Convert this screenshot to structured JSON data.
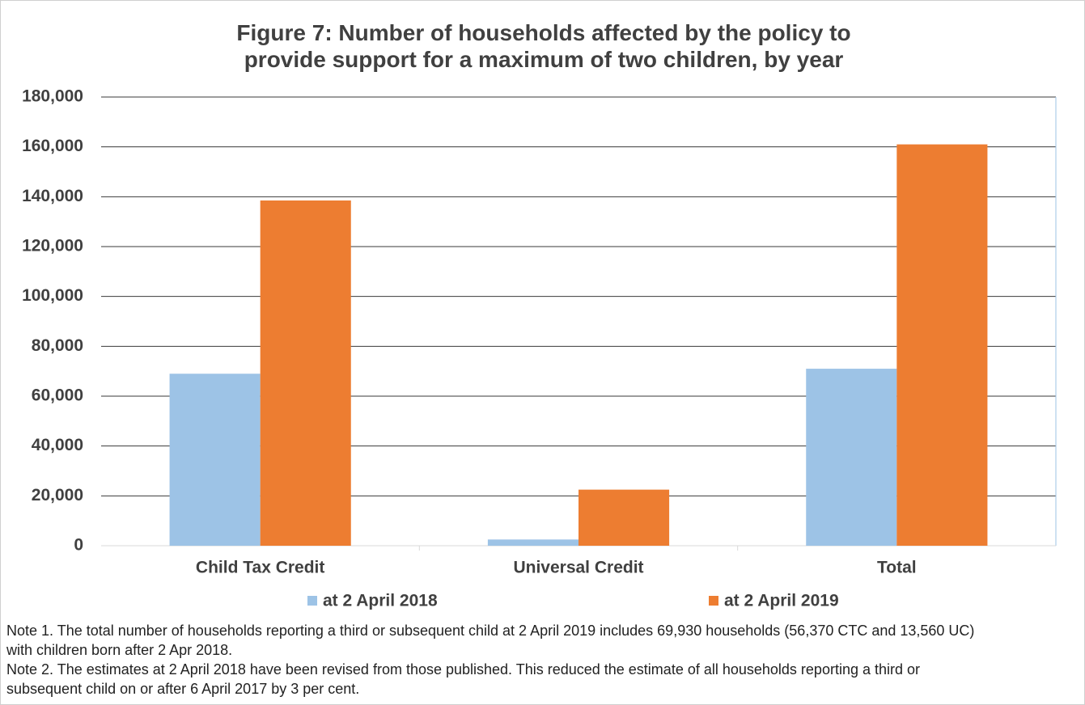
{
  "chart_data": {
    "type": "bar",
    "title": "Figure 7: Number of households affected by the policy to provide support for a maximum of two children, by year",
    "categories": [
      "Child Tax Credit",
      "Universal Credit",
      "Total"
    ],
    "series": [
      {
        "name": "at 2 April 2018",
        "color": "#9dc3e6",
        "values": [
          69000,
          2500,
          71000
        ]
      },
      {
        "name": "at 2 April 2019",
        "color": "#ed7d31",
        "values": [
          138500,
          22500,
          161000
        ]
      }
    ],
    "ylim": [
      0,
      180000
    ],
    "yticks": [
      0,
      {
        "value": 20000,
        "label": "20,000"
      },
      {
        "value": 40000,
        "label": "40,000"
      },
      {
        "value": 60000,
        "label": "60,000"
      },
      {
        "value": 80000,
        "label": "80,000"
      },
      {
        "value": 100000,
        "label": "100,000"
      },
      {
        "value": 120000,
        "label": "120,000"
      },
      {
        "value": 140000,
        "label": "140,000"
      },
      {
        "value": 160000,
        "label": "160,000"
      },
      {
        "value": 180000,
        "label": "180,000"
      }
    ],
    "grid": true,
    "legend": "bottom",
    "notes": [
      "Note 1. The total number of households reporting a third or subsequent child at 2 April 2019 includes 69,930 households (56,370 CTC and 13,560 UC) with children born after 2 Apr 2018.",
      "Note 2. The estimates at 2 April 2018 have been revised from those published. This reduced the estimate of all households reporting a third or subsequent child on or after 6 April 2017 by 3 per cent."
    ]
  }
}
